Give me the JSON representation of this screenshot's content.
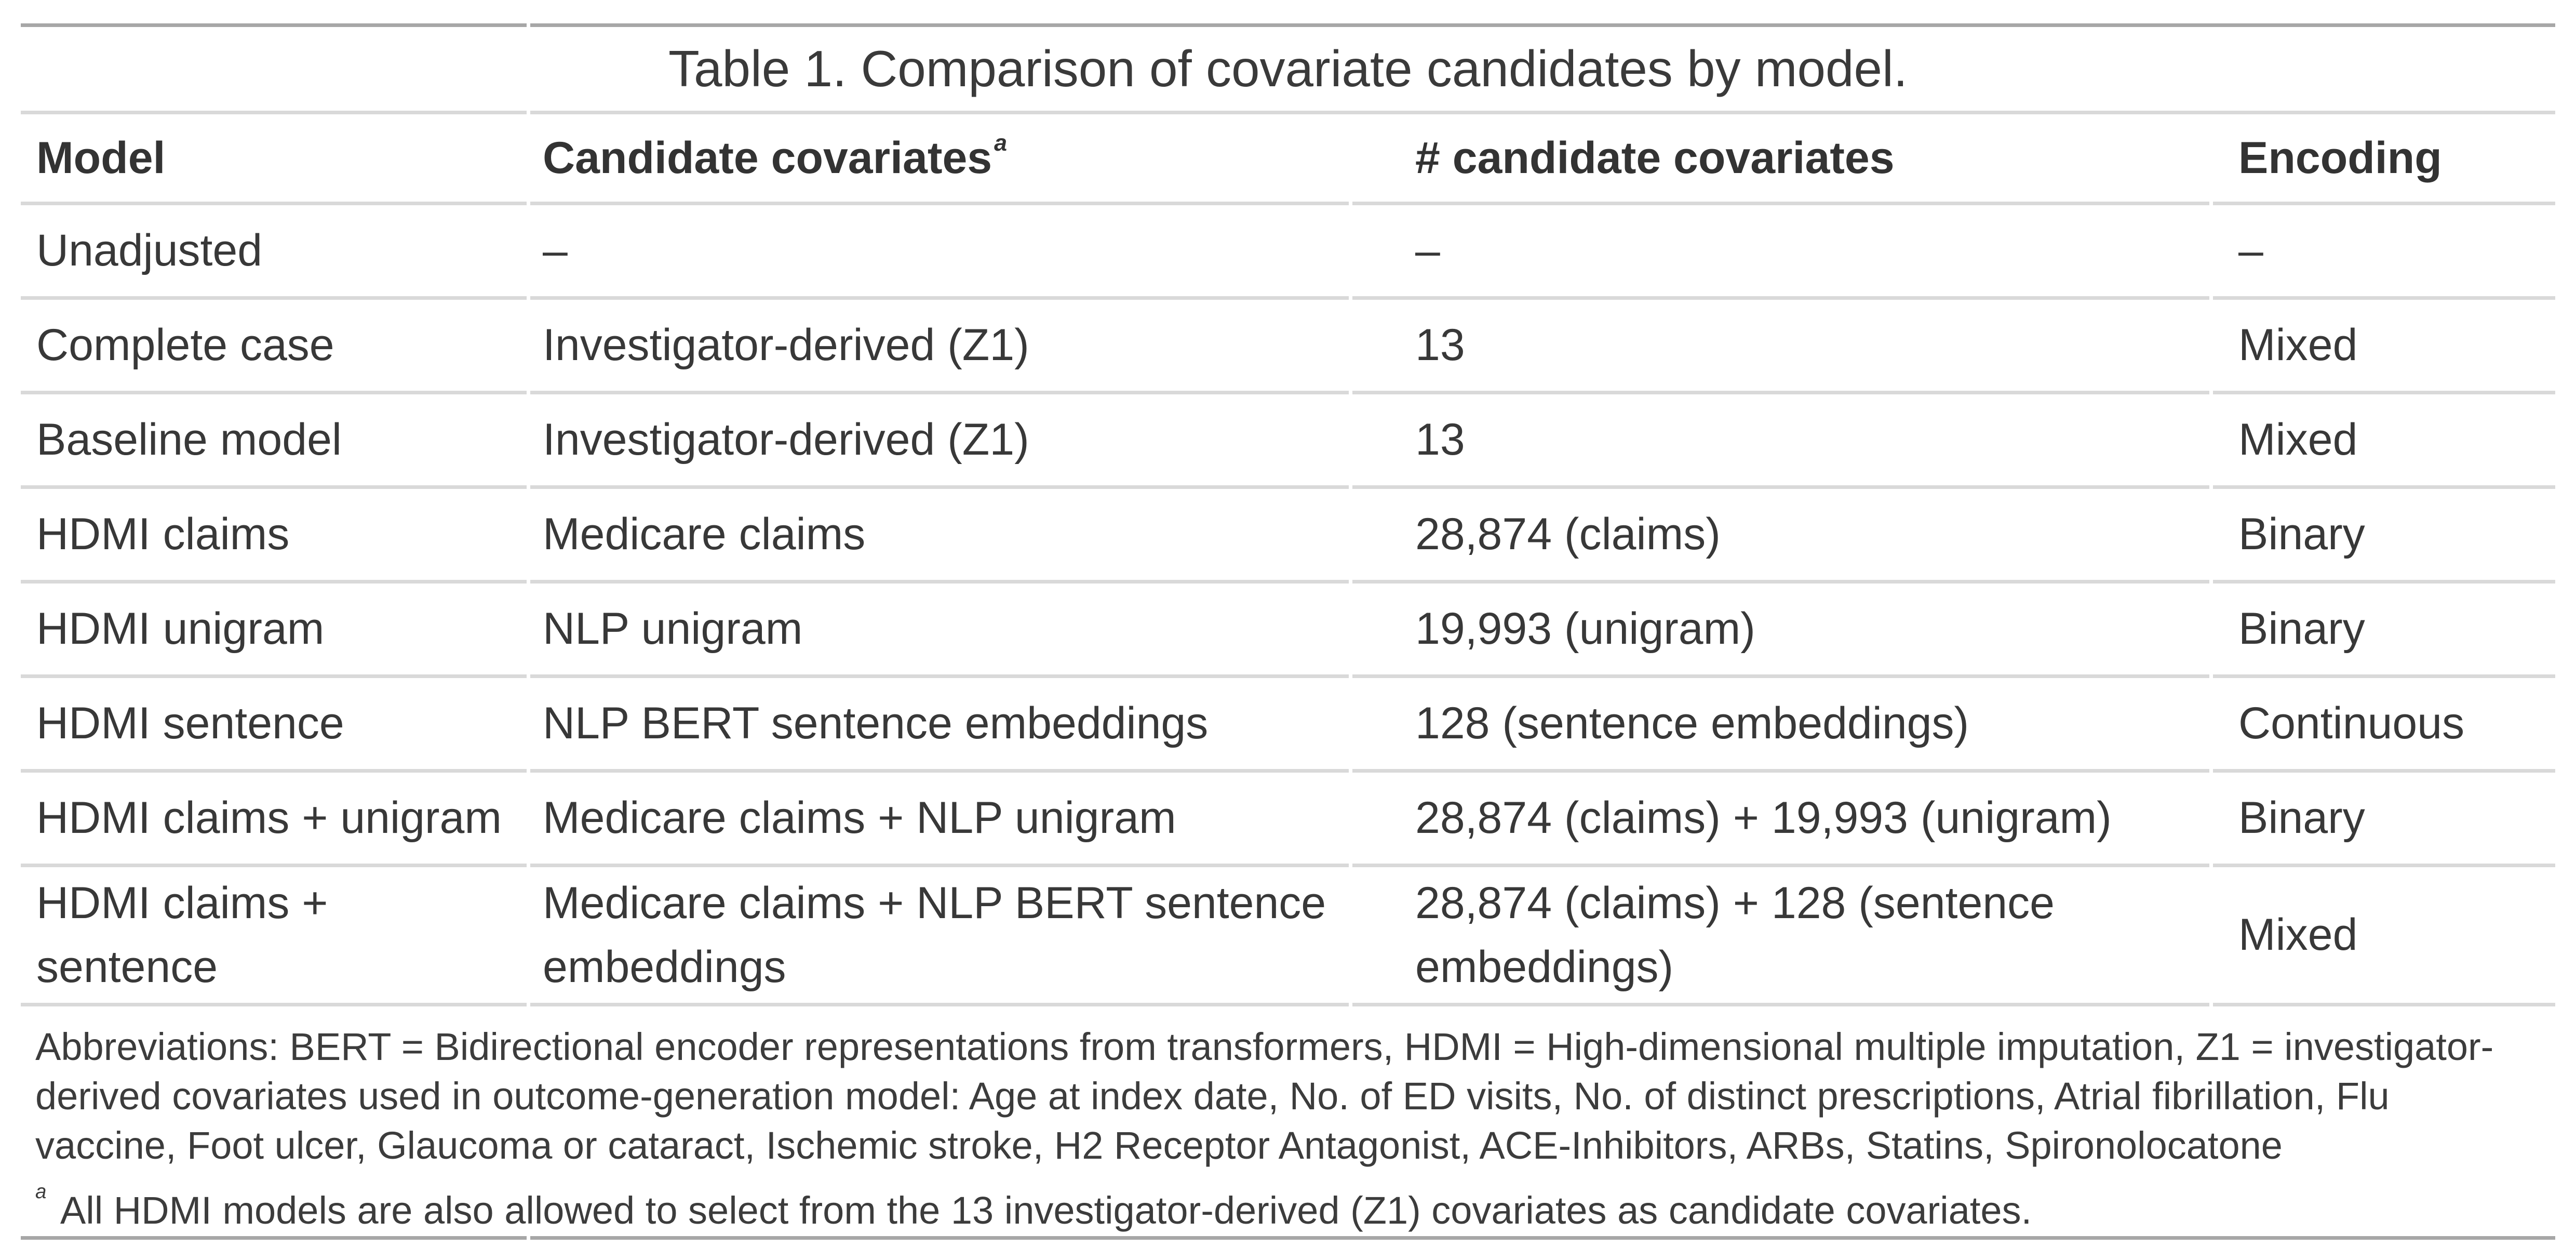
{
  "colors": {
    "border_dark": "#a7a7a7",
    "border_light": "#d9d9d9",
    "text": "#383838"
  },
  "table": {
    "title": "Table 1. Comparison of covariate candidates by model.",
    "columns": [
      "Model",
      "Candidate covariates",
      "# candidate covariates",
      "Encoding"
    ],
    "header_note_marker": "a",
    "rows": [
      [
        "Unadjusted",
        "–",
        "–",
        "–"
      ],
      [
        "Complete case",
        "Investigator-derived (Z1)",
        "13",
        "Mixed"
      ],
      [
        "Baseline model",
        "Investigator-derived (Z1)",
        "13",
        "Mixed"
      ],
      [
        "HDMI claims",
        "Medicare claims",
        "28,874 (claims)",
        "Binary"
      ],
      [
        "HDMI unigram",
        "NLP unigram",
        "19,993 (unigram)",
        "Binary"
      ],
      [
        "HDMI sentence",
        "NLP BERT sentence embeddings",
        "128 (sentence embeddings)",
        "Continuous"
      ],
      [
        "HDMI claims + unigram",
        "Medicare claims + NLP unigram",
        "28,874 (claims) + 19,993 (unigram)",
        "Binary"
      ],
      [
        "HDMI claims + sentence",
        "Medicare claims + NLP BERT sentence embeddings",
        "28,874 (claims) + 128 (sentence embeddings)",
        "Mixed"
      ]
    ],
    "footnotes": {
      "abbreviations": "Abbreviations: BERT = Bidirectional encoder representations from transformers, HDMI = High-dimensional multiple imputation, Z1 = investigator-derived covariates used in outcome-generation model: Age at index date, No. of ED visits, No. of distinct prescriptions, Atrial fibrillation, Flu vaccine, Foot ulcer, Glaucoma or cataract, Ischemic stroke, H2 Receptor Antagonist, ACE-Inhibitors, ARBs, Statins, Spironolocatone",
      "note_a_marker": "a",
      "note_a": "All HDMI models are also allowed to select from the 13 investigator-derived (Z1) covariates as candidate covariates."
    }
  }
}
